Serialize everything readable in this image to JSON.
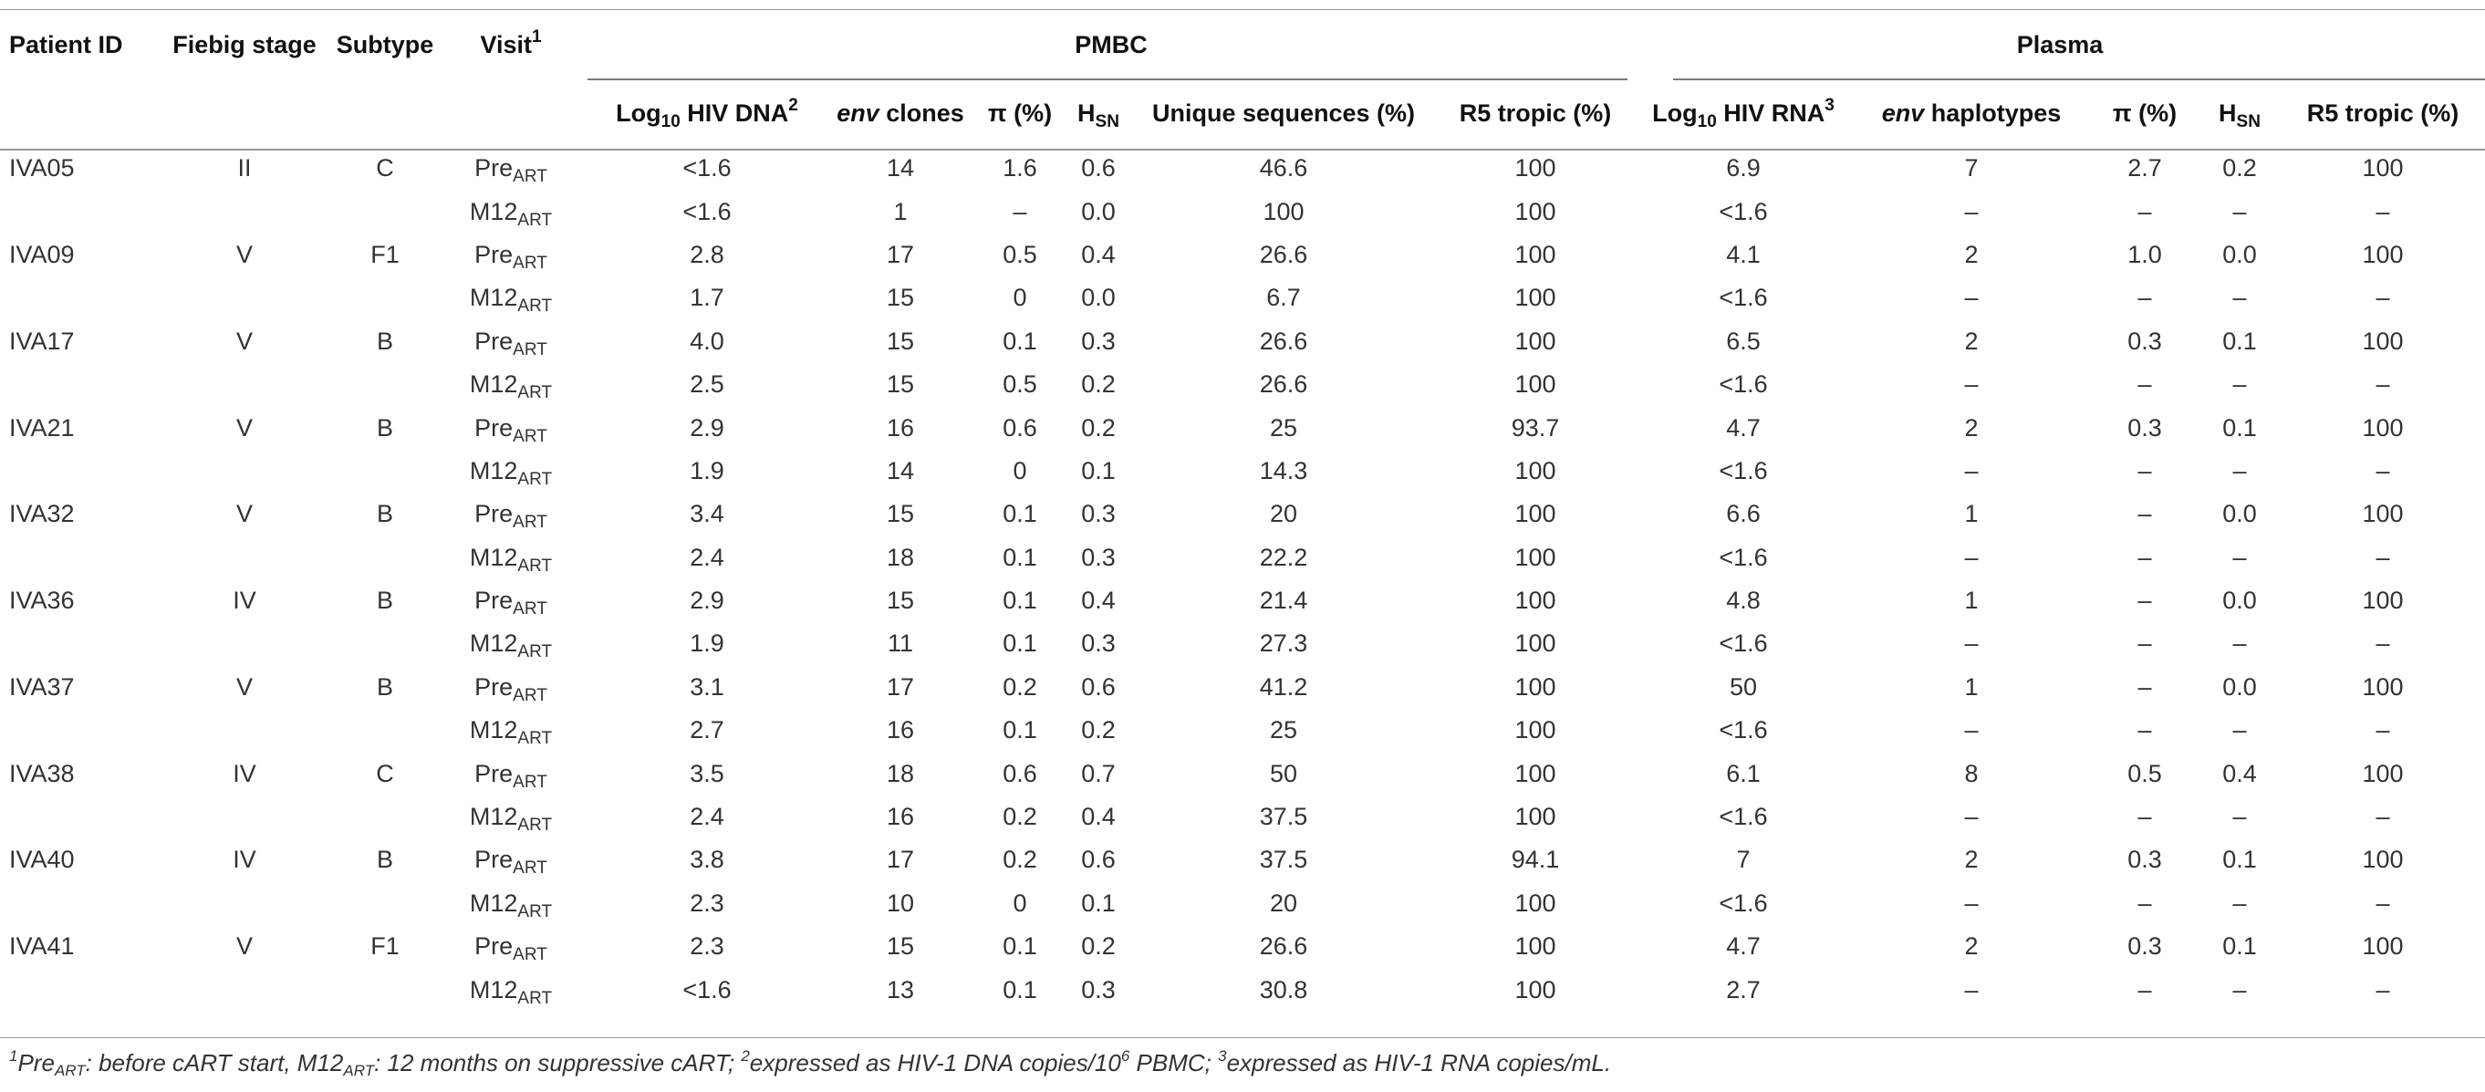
{
  "headers": {
    "patient_id": "Patient ID",
    "fiebig": "Fiebig stage",
    "subtype": "Subtype",
    "visit": "Visit",
    "visit_sup": "1",
    "pmbc": "PMBC",
    "plasma": "Plasma",
    "log_dna_pre": "Log",
    "log_dna_sub": "10",
    "log_dna_post": " HIV DNA",
    "log_dna_sup": "2",
    "env_clones_em": "env",
    "env_clones_rest": " clones",
    "pi1": "π (%)",
    "hsn1_main": "H",
    "hsn1_sub": "SN",
    "unique": "Unique sequences (%)",
    "r5_1": "R5 tropic (%)",
    "log_rna_pre": "Log",
    "log_rna_sub": "10",
    "log_rna_post": " HIV RNA",
    "log_rna_sup": "3",
    "env_hap_em": "env",
    "env_hap_rest": " haplotypes",
    "pi2": "π (%)",
    "hsn2_main": "H",
    "hsn2_sub": "SN",
    "r5_2": "R5 tropic (%)"
  },
  "rows": [
    {
      "id": "IVA05",
      "fiebig": "II",
      "subtype": "C",
      "visit": "Pre",
      "visit_sub": "ART",
      "dna": "<1.6",
      "clones": "14",
      "pi": "1.6",
      "hsn": "0.6",
      "uniq": "46.6",
      "r5": "100",
      "rna": "6.9",
      "hap": "7",
      "pi2": "2.7",
      "hsn2": "0.2",
      "r52": "100"
    },
    {
      "id": "",
      "fiebig": "",
      "subtype": "",
      "visit": "M12",
      "visit_sub": "ART",
      "dna": "<1.6",
      "clones": "1",
      "pi": "–",
      "hsn": "0.0",
      "uniq": "100",
      "r5": "100",
      "rna": "<1.6",
      "hap": "–",
      "pi2": "–",
      "hsn2": "–",
      "r52": "–"
    },
    {
      "id": "IVA09",
      "fiebig": "V",
      "subtype": "F1",
      "visit": "Pre",
      "visit_sub": "ART",
      "dna": "2.8",
      "clones": "17",
      "pi": "0.5",
      "hsn": "0.4",
      "uniq": "26.6",
      "r5": "100",
      "rna": "4.1",
      "hap": "2",
      "pi2": "1.0",
      "hsn2": "0.0",
      "r52": "100"
    },
    {
      "id": "",
      "fiebig": "",
      "subtype": "",
      "visit": "M12",
      "visit_sub": "ART",
      "dna": "1.7",
      "clones": "15",
      "pi": "0",
      "hsn": "0.0",
      "uniq": "6.7",
      "r5": "100",
      "rna": "<1.6",
      "hap": "–",
      "pi2": "–",
      "hsn2": "–",
      "r52": "–"
    },
    {
      "id": "IVA17",
      "fiebig": "V",
      "subtype": "B",
      "visit": "Pre",
      "visit_sub": "ART",
      "dna": "4.0",
      "clones": "15",
      "pi": "0.1",
      "hsn": "0.3",
      "uniq": "26.6",
      "r5": "100",
      "rna": "6.5",
      "hap": "2",
      "pi2": "0.3",
      "hsn2": "0.1",
      "r52": "100"
    },
    {
      "id": "",
      "fiebig": "",
      "subtype": "",
      "visit": "M12",
      "visit_sub": "ART",
      "dna": "2.5",
      "clones": "15",
      "pi": "0.5",
      "hsn": "0.2",
      "uniq": "26.6",
      "r5": "100",
      "rna": "<1.6",
      "hap": "–",
      "pi2": "–",
      "hsn2": "–",
      "r52": "–"
    },
    {
      "id": "IVA21",
      "fiebig": "V",
      "subtype": "B",
      "visit": "Pre",
      "visit_sub": "ART",
      "dna": "2.9",
      "clones": "16",
      "pi": "0.6",
      "hsn": "0.2",
      "uniq": "25",
      "r5": "93.7",
      "rna": "4.7",
      "hap": "2",
      "pi2": "0.3",
      "hsn2": "0.1",
      "r52": "100"
    },
    {
      "id": "",
      "fiebig": "",
      "subtype": "",
      "visit": "M12",
      "visit_sub": "ART",
      "dna": "1.9",
      "clones": "14",
      "pi": "0",
      "hsn": "0.1",
      "uniq": "14.3",
      "r5": "100",
      "rna": "<1.6",
      "hap": "–",
      "pi2": "–",
      "hsn2": "–",
      "r52": "–"
    },
    {
      "id": "IVA32",
      "fiebig": "V",
      "subtype": "B",
      "visit": "Pre",
      "visit_sub": "ART",
      "dna": "3.4",
      "clones": "15",
      "pi": "0.1",
      "hsn": "0.3",
      "uniq": "20",
      "r5": "100",
      "rna": "6.6",
      "hap": "1",
      "pi2": "–",
      "hsn2": "0.0",
      "r52": "100"
    },
    {
      "id": "",
      "fiebig": "",
      "subtype": "",
      "visit": "M12",
      "visit_sub": "ART",
      "dna": "2.4",
      "clones": "18",
      "pi": "0.1",
      "hsn": "0.3",
      "uniq": "22.2",
      "r5": "100",
      "rna": "<1.6",
      "hap": "–",
      "pi2": "–",
      "hsn2": "–",
      "r52": "–"
    },
    {
      "id": "IVA36",
      "fiebig": "IV",
      "subtype": "B",
      "visit": "Pre",
      "visit_sub": "ART",
      "dna": "2.9",
      "clones": "15",
      "pi": "0.1",
      "hsn": "0.4",
      "uniq": "21.4",
      "r5": "100",
      "rna": "4.8",
      "hap": "1",
      "pi2": "–",
      "hsn2": "0.0",
      "r52": "100"
    },
    {
      "id": "",
      "fiebig": "",
      "subtype": "",
      "visit": "M12",
      "visit_sub": "ART",
      "dna": "1.9",
      "clones": "11",
      "pi": "0.1",
      "hsn": "0.3",
      "uniq": "27.3",
      "r5": "100",
      "rna": "<1.6",
      "hap": "–",
      "pi2": "–",
      "hsn2": "–",
      "r52": "–"
    },
    {
      "id": "IVA37",
      "fiebig": "V",
      "subtype": "B",
      "visit": "Pre",
      "visit_sub": "ART",
      "dna": "3.1",
      "clones": "17",
      "pi": "0.2",
      "hsn": "0.6",
      "uniq": "41.2",
      "r5": "100",
      "rna": "50",
      "hap": "1",
      "pi2": "–",
      "hsn2": "0.0",
      "r52": "100"
    },
    {
      "id": "",
      "fiebig": "",
      "subtype": "",
      "visit": "M12",
      "visit_sub": "ART",
      "dna": "2.7",
      "clones": "16",
      "pi": "0.1",
      "hsn": "0.2",
      "uniq": "25",
      "r5": "100",
      "rna": "<1.6",
      "hap": "–",
      "pi2": "–",
      "hsn2": "–",
      "r52": "–"
    },
    {
      "id": "IVA38",
      "fiebig": "IV",
      "subtype": "C",
      "visit": "Pre",
      "visit_sub": "ART",
      "dna": "3.5",
      "clones": "18",
      "pi": "0.6",
      "hsn": "0.7",
      "uniq": "50",
      "r5": "100",
      "rna": "6.1",
      "hap": "8",
      "pi2": "0.5",
      "hsn2": "0.4",
      "r52": "100"
    },
    {
      "id": "",
      "fiebig": "",
      "subtype": "",
      "visit": "M12",
      "visit_sub": "ART",
      "dna": "2.4",
      "clones": "16",
      "pi": "0.2",
      "hsn": "0.4",
      "uniq": "37.5",
      "r5": "100",
      "rna": "<1.6",
      "hap": "–",
      "pi2": "–",
      "hsn2": "–",
      "r52": "–"
    },
    {
      "id": "IVA40",
      "fiebig": "IV",
      "subtype": "B",
      "visit": "Pre",
      "visit_sub": "ART",
      "dna": "3.8",
      "clones": "17",
      "pi": "0.2",
      "hsn": "0.6",
      "uniq": "37.5",
      "r5": "94.1",
      "rna": "7",
      "hap": "2",
      "pi2": "0.3",
      "hsn2": "0.1",
      "r52": "100"
    },
    {
      "id": "",
      "fiebig": "",
      "subtype": "",
      "visit": "M12",
      "visit_sub": "ART",
      "dna": "2.3",
      "clones": "10",
      "pi": "0",
      "hsn": "0.1",
      "uniq": "20",
      "r5": "100",
      "rna": "<1.6",
      "hap": "–",
      "pi2": "–",
      "hsn2": "–",
      "r52": "–"
    },
    {
      "id": "IVA41",
      "fiebig": "V",
      "subtype": "F1",
      "visit": "Pre",
      "visit_sub": "ART",
      "dna": "2.3",
      "clones": "15",
      "pi": "0.1",
      "hsn": "0.2",
      "uniq": "26.6",
      "r5": "100",
      "rna": "4.7",
      "hap": "2",
      "pi2": "0.3",
      "hsn2": "0.1",
      "r52": "100"
    },
    {
      "id": "",
      "fiebig": "",
      "subtype": "",
      "visit": "M12",
      "visit_sub": "ART",
      "dna": "<1.6",
      "clones": "13",
      "pi": "0.1",
      "hsn": "0.3",
      "uniq": "30.8",
      "r5": "100",
      "rna": "2.7",
      "hap": "–",
      "pi2": "–",
      "hsn2": "–",
      "r52": "–"
    }
  ],
  "footnote": {
    "s1": "1",
    "t1": "Pre",
    "t1sub": "ART",
    "t2": ": before cART start, M12",
    "t2sub": "ART",
    "t3": ": 12 months on suppressive cART; ",
    "s2": "2",
    "t4": "expressed as HIV-1 DNA copies/10",
    "s6": "6",
    "t5": " PBMC; ",
    "s3": "3",
    "t6": "expressed as HIV-1 RNA copies/mL."
  }
}
